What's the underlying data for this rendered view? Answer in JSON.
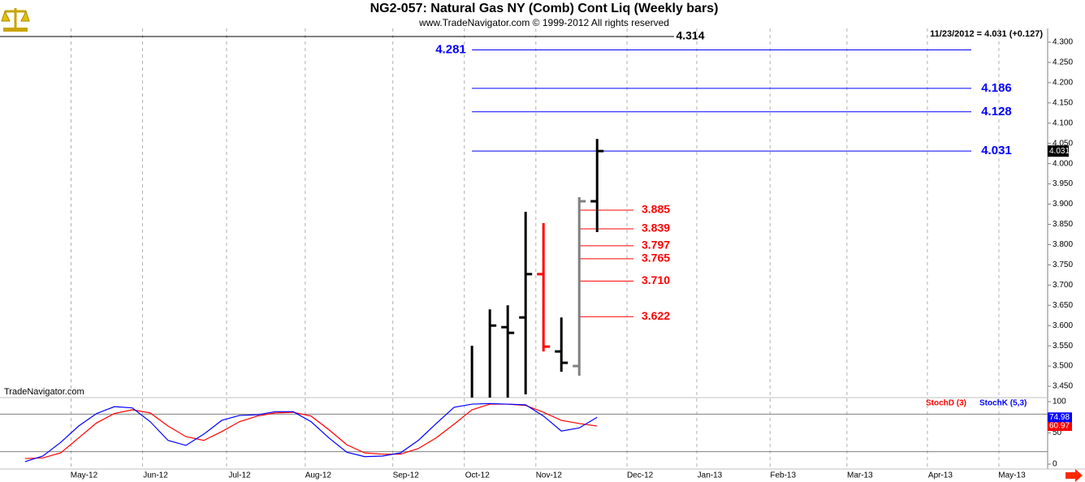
{
  "header": {
    "title": "NG2-057:  Natural Gas NY (Comb) Cont Liq  (Weekly bars)",
    "copyright": "www.TradeNavigator.com © 1999-2012 All rights reserved",
    "last_quote": "11/23/2012 = 4.031 (+0.127)",
    "watermark": "TradeNavigator.com"
  },
  "chart_data": [
    {
      "type": "ohlc",
      "x": [
        0,
        1,
        2,
        3,
        4,
        5,
        6,
        7
      ],
      "open": [
        null,
        null,
        3.596,
        3.62,
        3.727,
        3.536,
        3.5,
        3.907
      ],
      "high": [
        3.55,
        3.64,
        3.65,
        3.881,
        3.853,
        3.62,
        3.917,
        4.061
      ],
      "low": [
        3.422,
        3.422,
        3.422,
        3.43,
        3.536,
        3.486,
        3.476,
        3.831
      ],
      "close": [
        null,
        3.6,
        3.582,
        3.727,
        3.548,
        3.508,
        3.907,
        4.031
      ],
      "colors": [
        "#000000",
        "#000000",
        "#000000",
        "#000000",
        "#ff0000",
        "#000000",
        "#808080",
        "#000000"
      ],
      "xlim": [
        -26.4,
        32.2
      ],
      "xticks": [
        {
          "value": -21.7,
          "label": "May-12"
        },
        {
          "value": -17.7,
          "label": "Jun-12"
        },
        {
          "value": -13.0,
          "label": "Jul-12"
        },
        {
          "value": -8.6,
          "label": "Aug-12"
        },
        {
          "value": -3.7,
          "label": "Sep-12"
        },
        {
          "value": 0.3,
          "label": "Oct-12"
        },
        {
          "value": 4.3,
          "label": "Nov-12"
        },
        {
          "value": 9.4,
          "label": "Dec-12"
        },
        {
          "value": 13.3,
          "label": "Jan-13"
        },
        {
          "value": 17.4,
          "label": "Feb-13"
        },
        {
          "value": 21.7,
          "label": "Mar-13"
        },
        {
          "value": 26.2,
          "label": "Apr-13"
        },
        {
          "value": 30.2,
          "label": "May-13"
        }
      ],
      "ylim": [
        3.422,
        4.324
      ],
      "yticks": [
        {
          "value": 3.45,
          "label": "3.450"
        },
        {
          "value": 3.5,
          "label": "3.500"
        },
        {
          "value": 3.55,
          "label": "3.550"
        },
        {
          "value": 3.6,
          "label": "3.600"
        },
        {
          "value": 3.65,
          "label": "3.650"
        },
        {
          "value": 3.7,
          "label": "3.700"
        },
        {
          "value": 3.75,
          "label": "3.750"
        },
        {
          "value": 3.8,
          "label": "3.800"
        },
        {
          "value": 3.85,
          "label": "3.850"
        },
        {
          "value": 3.9,
          "label": "3.900"
        },
        {
          "value": 3.95,
          "label": "3.950"
        },
        {
          "value": 4.0,
          "label": "4.000"
        },
        {
          "value": 4.05,
          "label": "4.050"
        },
        {
          "value": 4.1,
          "label": "4.100"
        },
        {
          "value": 4.15,
          "label": "4.150"
        },
        {
          "value": 4.2,
          "label": "4.200"
        },
        {
          "value": 4.25,
          "label": "4.250"
        },
        {
          "value": 4.3,
          "label": "4.300"
        }
      ],
      "grid": true,
      "levels": [
        {
          "color": "#0000ff",
          "values": [
            4.281,
            4.186,
            4.128,
            4.031
          ],
          "value_labels": [
            "4.281",
            "4.186",
            "4.128",
            "4.031"
          ],
          "label_side": [
            "left",
            "right",
            "right",
            "right"
          ]
        },
        {
          "color": "#ff0000",
          "values": [
            3.885,
            3.839,
            3.797,
            3.765,
            3.71,
            3.622
          ],
          "value_labels": [
            "3.885",
            "3.839",
            "3.797",
            "3.765",
            "3.710",
            "3.622"
          ],
          "label_side": [
            "right",
            "right",
            "right",
            "right",
            "right",
            "right"
          ]
        },
        {
          "color": "#000000",
          "values": [
            4.314
          ],
          "value_labels": [
            "4.314"
          ],
          "label_side": [
            "right"
          ]
        }
      ]
    },
    {
      "type": "line",
      "x": [
        -25,
        -24,
        -23,
        -22,
        -21,
        -20,
        -19,
        -18,
        -17,
        -16,
        -15,
        -14,
        -13,
        -12,
        -11,
        -10,
        -9,
        -8,
        -7,
        -6,
        -5,
        -4,
        -3,
        -2,
        -1,
        0,
        1,
        2,
        3,
        4,
        5,
        6,
        7
      ],
      "series": [
        {
          "name": "StochD (3)",
          "color": "#ff0000",
          "values": [
            9,
            10,
            18,
            42,
            66,
            81,
            87,
            82,
            61,
            44,
            38,
            52,
            68,
            77,
            82,
            83,
            77,
            55,
            31,
            18,
            16,
            16,
            25,
            42,
            64,
            87,
            96,
            96,
            94,
            83,
            70,
            65,
            60.97
          ]
        },
        {
          "name": "StochK (5,3)",
          "color": "#0000ff",
          "values": [
            4,
            13,
            35,
            61,
            81,
            92,
            90,
            68,
            38,
            30,
            48,
            70,
            78,
            79,
            84,
            84,
            68,
            42,
            19,
            12,
            13,
            18,
            38,
            65,
            91,
            96,
            97,
            96,
            95,
            77,
            53,
            58,
            74.98
          ]
        }
      ],
      "ylim": [
        -7.8,
        106.5
      ],
      "yticks": [
        0,
        50,
        100
      ],
      "reference_lines": [
        20,
        80
      ]
    }
  ]
}
